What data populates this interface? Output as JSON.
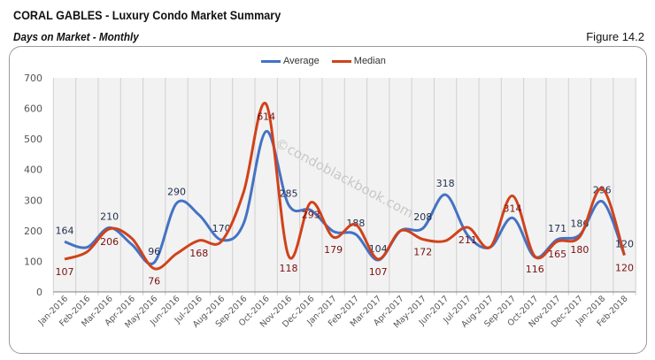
{
  "header": {
    "title": "CORAL GABLES - Luxury Condo Market Summary",
    "subtitle": "Days on Market - Monthly",
    "figure": "Figure 14.2"
  },
  "watermark": "©condoblackbook.com",
  "chart_data": {
    "type": "line",
    "title": "",
    "xlabel": "",
    "ylabel": "",
    "ylim": [
      0,
      700
    ],
    "yticks": [
      0,
      100,
      200,
      300,
      400,
      500,
      600,
      700
    ],
    "grid": "vertical",
    "legend": "top-center",
    "smooth": true,
    "categories": [
      "Jan-2016",
      "Feb-2016",
      "Mar-2016",
      "Apr-2016",
      "May-2016",
      "Jun-2016",
      "Jul-2016",
      "Aug-2016",
      "Sep-2016",
      "Oct-2016",
      "Nov-2016",
      "Dec-2016",
      "Jan-2017",
      "Feb-2017",
      "Mar-2017",
      "Apr-2017",
      "May-2017",
      "Jun-2017",
      "Jul-2017",
      "Aug-2017",
      "Sep-2017",
      "Oct-2017",
      "Nov-2017",
      "Dec-2017",
      "Jan-2018",
      "Feb-2018"
    ],
    "series": [
      {
        "name": "Average",
        "color": "#4472c4",
        "label_color": "#1f2d4d",
        "values": [
          164,
          146,
          210,
          155,
          96,
          290,
          252,
          170,
          225,
          525,
          285,
          267,
          198,
          188,
          104,
          200,
          208,
          318,
          185,
          146,
          242,
          114,
          171,
          186,
          296,
          120
        ],
        "labels": [
          164,
          null,
          210,
          null,
          96,
          290,
          null,
          170,
          null,
          null,
          285,
          null,
          null,
          188,
          104,
          null,
          208,
          318,
          null,
          null,
          null,
          null,
          171,
          186,
          296,
          120
        ]
      },
      {
        "name": "Median",
        "color": "#d0421b",
        "label_color": "#7a1010",
        "values": [
          107,
          131,
          206,
          175,
          76,
          125,
          168,
          165,
          328,
          614,
          118,
          293,
          179,
          220,
          107,
          200,
          172,
          167,
          211,
          146,
          314,
          116,
          165,
          180,
          338,
          120
        ],
        "labels": [
          107,
          null,
          206,
          null,
          76,
          null,
          168,
          null,
          null,
          614,
          118,
          293,
          179,
          null,
          107,
          null,
          172,
          null,
          211,
          null,
          314,
          116,
          165,
          180,
          null,
          120
        ]
      }
    ]
  }
}
